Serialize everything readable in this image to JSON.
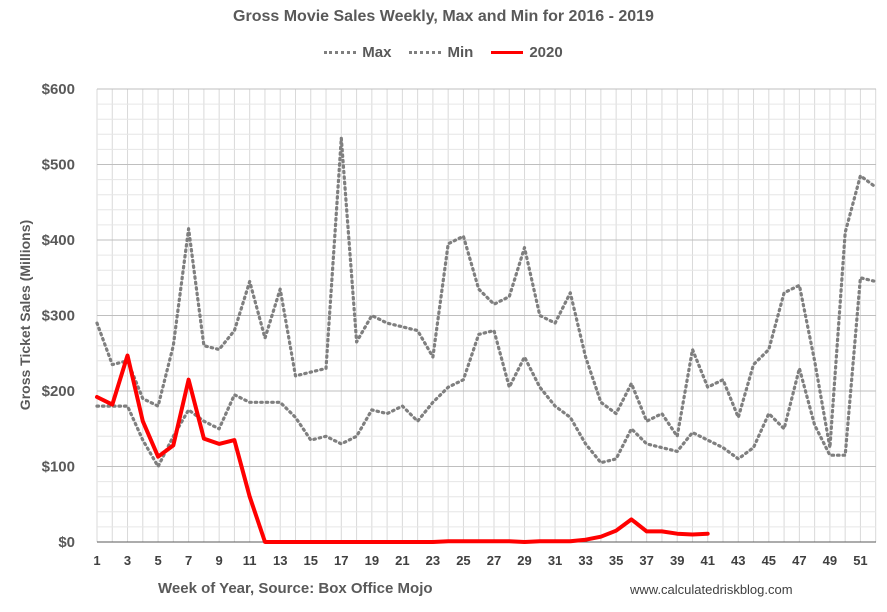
{
  "chart_data": {
    "type": "line",
    "title": "Gross Movie Sales Weekly, Max and Min for 2016 - 2019",
    "xlabel": "Week of Year, Source: Box Office Mojo",
    "ylabel": "Gross Ticket Sales (Millions)",
    "source_note": "www.calculatedriskblog.com",
    "xlim": [
      1,
      52
    ],
    "ylim": [
      0,
      600
    ],
    "y_ticks": [
      0,
      100,
      200,
      300,
      400,
      500,
      600
    ],
    "y_tick_labels": [
      "$0",
      "$100",
      "$200",
      "$300",
      "$400",
      "$500",
      "$600"
    ],
    "x_tick_labels": [
      "1",
      "3",
      "5",
      "7",
      "9",
      "11",
      "13",
      "15",
      "17",
      "19",
      "21",
      "23",
      "25",
      "27",
      "29",
      "31",
      "33",
      "35",
      "37",
      "39",
      "41",
      "43",
      "45",
      "47",
      "49",
      "51"
    ],
    "x_tick_values": [
      1,
      3,
      5,
      7,
      9,
      11,
      13,
      15,
      17,
      19,
      21,
      23,
      25,
      27,
      29,
      31,
      33,
      35,
      37,
      39,
      41,
      43,
      45,
      47,
      49,
      51
    ],
    "series": [
      {
        "name": "Max",
        "style": "dotted",
        "color": "#7f7f7f",
        "x": [
          1,
          2,
          3,
          4,
          5,
          6,
          7,
          8,
          9,
          10,
          11,
          12,
          13,
          14,
          15,
          16,
          17,
          18,
          19,
          20,
          21,
          22,
          23,
          24,
          25,
          26,
          27,
          28,
          29,
          30,
          31,
          32,
          33,
          34,
          35,
          36,
          37,
          38,
          39,
          40,
          41,
          42,
          43,
          44,
          45,
          46,
          47,
          48,
          49,
          50,
          51,
          52
        ],
        "values": [
          290,
          235,
          240,
          190,
          180,
          260,
          415,
          260,
          255,
          280,
          345,
          270,
          335,
          220,
          225,
          230,
          535,
          265,
          300,
          290,
          285,
          280,
          245,
          395,
          405,
          335,
          315,
          325,
          390,
          300,
          290,
          330,
          245,
          185,
          170,
          210,
          160,
          170,
          140,
          255,
          205,
          215,
          165,
          235,
          255,
          330,
          340,
          240,
          125,
          410,
          485,
          470
        ]
      },
      {
        "name": "Min",
        "style": "dotted",
        "color": "#7f7f7f",
        "x": [
          1,
          2,
          3,
          4,
          5,
          6,
          7,
          8,
          9,
          10,
          11,
          12,
          13,
          14,
          15,
          16,
          17,
          18,
          19,
          20,
          21,
          22,
          23,
          24,
          25,
          26,
          27,
          28,
          29,
          30,
          31,
          32,
          33,
          34,
          35,
          36,
          37,
          38,
          39,
          40,
          41,
          42,
          43,
          44,
          45,
          46,
          47,
          48,
          49,
          50,
          51,
          52
        ],
        "values": [
          180,
          180,
          180,
          135,
          100,
          140,
          175,
          160,
          150,
          195,
          185,
          185,
          185,
          165,
          135,
          140,
          130,
          140,
          175,
          170,
          180,
          160,
          185,
          205,
          215,
          275,
          280,
          205,
          245,
          205,
          180,
          165,
          130,
          105,
          110,
          150,
          130,
          125,
          120,
          145,
          135,
          125,
          110,
          125,
          170,
          150,
          230,
          155,
          115,
          115,
          350,
          345
        ]
      },
      {
        "name": "2020",
        "style": "solid",
        "color": "#ff0000",
        "x": [
          1,
          2,
          3,
          4,
          5,
          6,
          7,
          8,
          9,
          10,
          11,
          12,
          13,
          14,
          15,
          16,
          17,
          18,
          19,
          20,
          21,
          22,
          23,
          24,
          25,
          26,
          27,
          28,
          29,
          30,
          31,
          32,
          33,
          34,
          35,
          36,
          37,
          38,
          39,
          40,
          41
        ],
        "values": [
          192,
          182,
          247,
          160,
          113,
          128,
          215,
          137,
          130,
          135,
          60,
          0,
          0,
          0,
          0,
          0,
          0,
          0,
          0,
          0,
          0,
          0,
          0,
          1,
          1,
          1,
          1,
          1,
          0,
          1,
          1,
          1,
          3,
          7,
          15,
          30,
          14,
          14,
          11,
          10,
          11
        ]
      }
    ]
  },
  "legend": {
    "max_label": "Max",
    "min_label": "Min",
    "y2020_label": "2020"
  }
}
